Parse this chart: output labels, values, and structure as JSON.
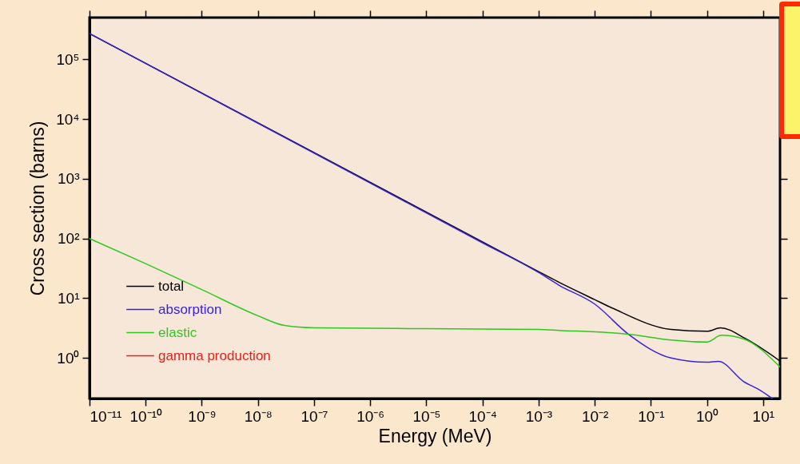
{
  "chart_data": {
    "type": "line",
    "xlabel": "Energy (MeV)",
    "ylabel": "Cross section (barns)",
    "log": "xy",
    "grid": false,
    "legend": "bottom left",
    "xlim": [
      1e-11,
      20
    ],
    "ylim": [
      0.21,
      500000
    ],
    "xticks": [
      {
        "value": 1e-11,
        "label": "10⁻¹¹"
      },
      {
        "value": 1e-10,
        "label": "10⁻¹⁰"
      },
      {
        "value": 1e-09,
        "label": "10⁻⁹"
      },
      {
        "value": 1e-08,
        "label": "10⁻⁸"
      },
      {
        "value": 1e-07,
        "label": "10⁻⁷"
      },
      {
        "value": 1e-06,
        "label": "10⁻⁶"
      },
      {
        "value": 1e-05,
        "label": "10⁻⁵"
      },
      {
        "value": 0.0001,
        "label": "10⁻⁴"
      },
      {
        "value": 0.001,
        "label": "10⁻³"
      },
      {
        "value": 0.01,
        "label": "10⁻²"
      },
      {
        "value": 0.1,
        "label": "10⁻¹"
      },
      {
        "value": 1,
        "label": "10⁰"
      },
      {
        "value": 10,
        "label": "10¹"
      }
    ],
    "yticks": [
      {
        "value": 1,
        "label": "10⁰"
      },
      {
        "value": 10,
        "label": "10¹"
      },
      {
        "value": 100,
        "label": "10²"
      },
      {
        "value": 1000,
        "label": "10³"
      },
      {
        "value": 10000,
        "label": "10⁴"
      },
      {
        "value": 100000,
        "label": "10⁵"
      }
    ],
    "series": [
      {
        "name": "total",
        "color": "#000000",
        "x": [
          1e-11,
          0.001,
          0.0023,
          0.01,
          0.021,
          0.23,
          1,
          1.74,
          4.9,
          20
        ],
        "values": [
          270000,
          28,
          18.6,
          9.5,
          6.8,
          3.0,
          2.8,
          3.2,
          2.1,
          0.89
        ]
      },
      {
        "name": "absorption",
        "color": "#3a22d8",
        "x": [
          1e-11,
          0.0001,
          0.001,
          0.0023,
          0.01,
          0.04,
          0.23,
          1,
          1.6,
          4.4,
          9.3,
          14.5
        ],
        "values": [
          270000,
          85,
          27,
          16.6,
          8,
          2.5,
          1.0,
          0.85,
          0.88,
          0.41,
          0.28,
          0.21
        ]
      },
      {
        "name": "elastic",
        "color": "#2ec81e",
        "x": [
          1e-11,
          1e-10,
          1e-09,
          1e-08,
          3e-08,
          1e-07,
          1e-05,
          0.001,
          0.0023,
          0.04,
          0.23,
          1,
          1.8,
          4.4,
          20
        ],
        "values": [
          100,
          38,
          14,
          5.1,
          3.5,
          3.2,
          3.1,
          3.0,
          2.9,
          2.5,
          2.0,
          1.85,
          2.4,
          2.1,
          0.71
        ]
      },
      {
        "name": "gamma production",
        "color": "#e8201a"
      }
    ]
  }
}
